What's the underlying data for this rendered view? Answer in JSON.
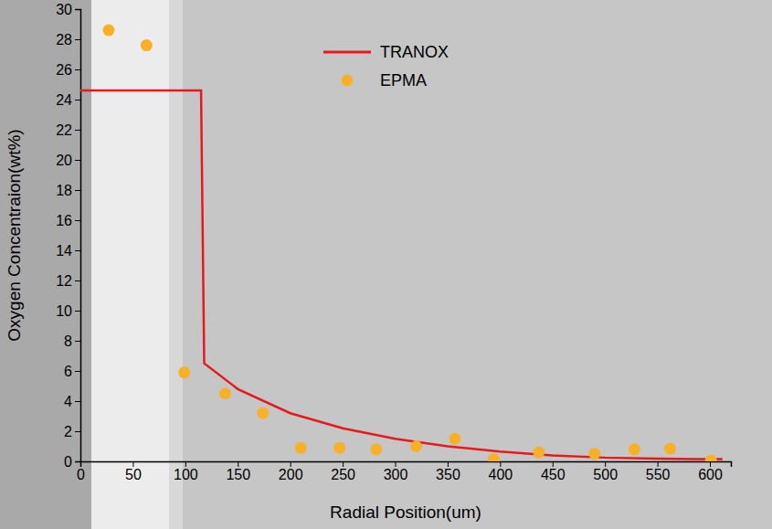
{
  "chart_data": {
    "type": "line",
    "x_label": "Radial Position(um)",
    "y_label": "Oxygen Concentraion(wt%)",
    "xlim": [
      0,
      620
    ],
    "ylim": [
      0,
      30
    ],
    "xticks": [
      0,
      50,
      100,
      150,
      200,
      250,
      300,
      350,
      400,
      450,
      500,
      550,
      600
    ],
    "yticks": [
      0,
      2,
      4,
      6,
      8,
      10,
      12,
      14,
      16,
      18,
      20,
      22,
      24,
      26,
      28,
      30
    ],
    "grid": false,
    "legend": "top",
    "series": [
      {
        "name": "TRANOX",
        "type": "line",
        "color": "#e8191c",
        "line_style": "solid",
        "x": [
          0,
          115,
          118,
          150,
          200,
          250,
          300,
          350,
          400,
          450,
          500,
          550,
          600,
          612
        ],
        "values": [
          24.6,
          24.6,
          6.5,
          4.8,
          3.2,
          2.2,
          1.5,
          1.0,
          0.65,
          0.4,
          0.25,
          0.18,
          0.15,
          0.15
        ]
      },
      {
        "name": "EPMA",
        "type": "scatter",
        "color": "#f7b028",
        "marker": "circle",
        "x": [
          27,
          63,
          99,
          138,
          174,
          210,
          247,
          282,
          320,
          357,
          394,
          437,
          490,
          528,
          562,
          601
        ],
        "values": [
          28.6,
          27.6,
          5.9,
          4.5,
          3.2,
          0.9,
          0.9,
          0.8,
          1.0,
          1.5,
          0.15,
          0.6,
          0.5,
          0.8,
          0.85,
          0.05
        ]
      }
    ]
  }
}
